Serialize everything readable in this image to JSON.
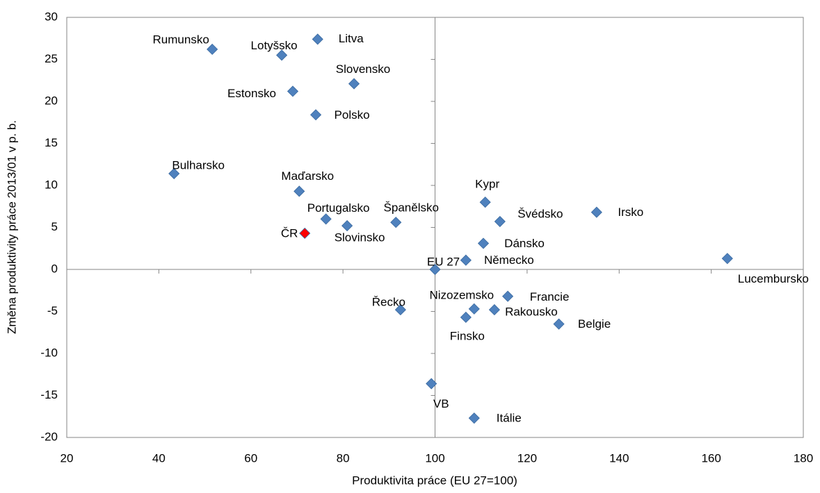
{
  "chart_data": {
    "type": "scatter",
    "xlabel": "Produktivita práce (EU 27=100)",
    "ylabel": "Změna produktivity práce 2013/01 v p. b.",
    "categories": [
      "Rumunsko",
      "Lotyšsko",
      "Litva",
      "Slovensko",
      "Estonsko",
      "Polsko",
      "Bulharsko",
      "Maďarsko",
      "Portugalsko",
      "Slovinsko",
      "Španělsko",
      "ČR",
      "EU 27",
      "Kypr",
      "Švédsko",
      "Irsko",
      "Dánsko",
      "Německo",
      "Lucembursko",
      "Francie",
      "Nizozemsko",
      "Rakousko",
      "Finsko",
      "Belgie",
      "Řecko",
      "VB",
      "Itálie"
    ],
    "x": [
      51.6,
      66.7,
      74.5,
      82.4,
      69.1,
      74.1,
      43.3,
      70.5,
      76.3,
      80.9,
      91.5,
      71.7,
      100,
      110.9,
      114.1,
      135.1,
      110.5,
      106.7,
      163.5,
      115.8,
      108.5,
      112.9,
      106.7,
      126.9,
      92.5,
      99.2,
      108.5
    ],
    "values": [
      26.2,
      25.5,
      27.4,
      22.1,
      21.2,
      18.4,
      11.4,
      9.3,
      6.0,
      5.2,
      5.6,
      4.3,
      0,
      8.0,
      5.7,
      6.8,
      3.1,
      1.1,
      1.3,
      -3.2,
      -4.7,
      -4.8,
      -5.7,
      -6.5,
      -4.8,
      -13.6,
      -17.7
    ],
    "colors": [
      "#4f81bd",
      "#4f81bd",
      "#4f81bd",
      "#4f81bd",
      "#4f81bd",
      "#4f81bd",
      "#4f81bd",
      "#4f81bd",
      "#4f81bd",
      "#4f81bd",
      "#4f81bd",
      "#ff0000",
      "#4f81bd",
      "#4f81bd",
      "#4f81bd",
      "#4f81bd",
      "#4f81bd",
      "#4f81bd",
      "#4f81bd",
      "#4f81bd",
      "#4f81bd",
      "#4f81bd",
      "#4f81bd",
      "#4f81bd",
      "#4f81bd",
      "#4f81bd",
      "#4f81bd"
    ],
    "xlim": [
      20,
      180
    ],
    "xticks": [
      20,
      40,
      60,
      80,
      100,
      120,
      140,
      160,
      180
    ],
    "ylim": [
      -20,
      30
    ],
    "yticks": [
      -20,
      -15,
      -10,
      -5,
      0,
      5,
      10,
      15,
      20,
      25,
      30
    ],
    "x_axis_crosses": 100,
    "y_axis_crosses": 0,
    "grid": false
  }
}
